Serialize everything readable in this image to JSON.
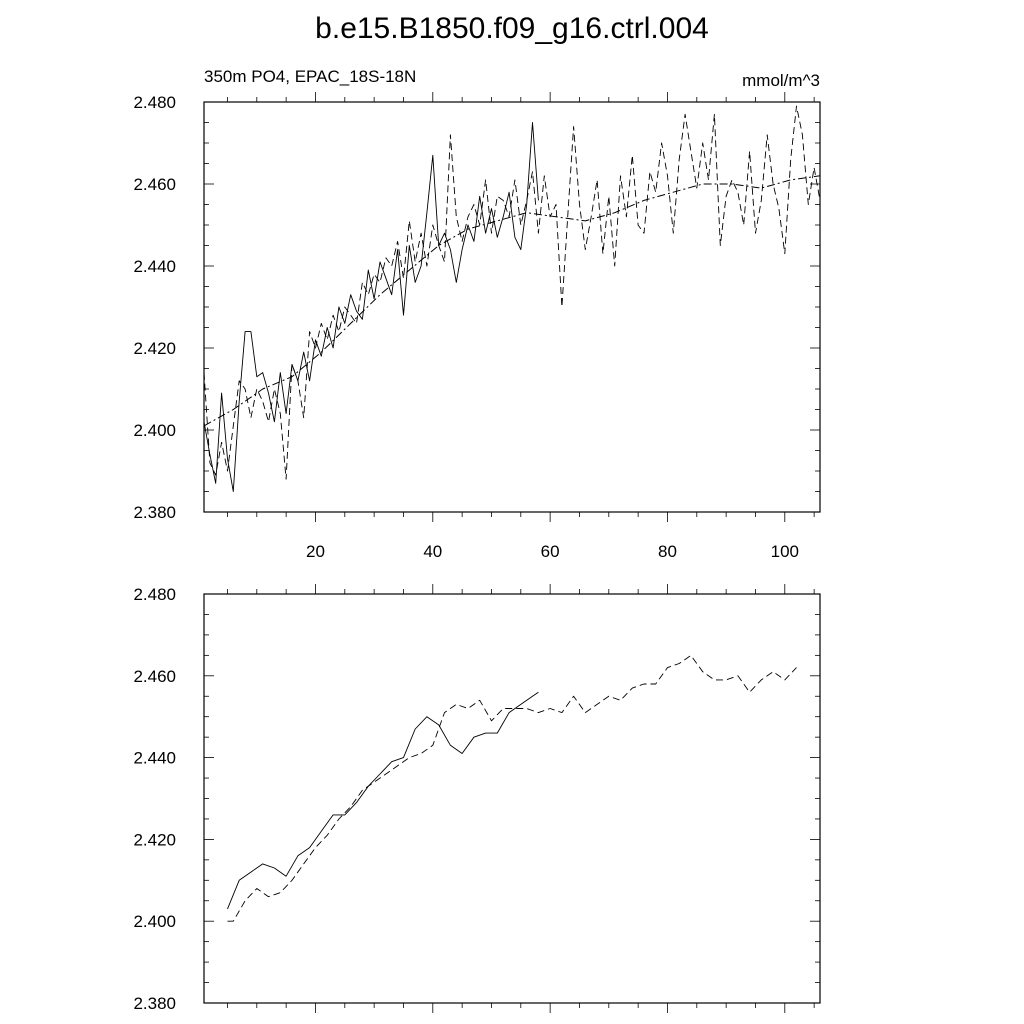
{
  "title": "b.e15.B1850.f09_g16.ctrl.004",
  "colors": {
    "background": "#ffffff",
    "ink": "#000000"
  },
  "chart_data": [
    {
      "type": "line",
      "subtitle_left": "350m PO4, EPAC_18S-18N",
      "subtitle_right": "mmol/m^3",
      "xlim": [
        1,
        106
      ],
      "ylim": [
        2.38,
        2.48
      ],
      "x_ticks": [
        20,
        40,
        60,
        80,
        100
      ],
      "x_tick_labels": [
        "20",
        "40",
        "60",
        "80",
        "100"
      ],
      "y_ticks": [
        2.38,
        2.4,
        2.42,
        2.44,
        2.46,
        2.48
      ],
      "y_tick_labels": [
        "2.380",
        "2.400",
        "2.420",
        "2.440",
        "2.460",
        "2.480"
      ],
      "grid": false,
      "series": [
        {
          "style": "solid",
          "x": [
            1,
            2,
            3,
            4,
            5,
            6,
            7,
            8,
            9,
            10,
            11,
            12,
            13,
            14,
            15,
            16,
            17,
            18,
            19,
            20,
            21,
            22,
            23,
            24,
            25,
            26,
            27,
            28,
            29,
            30,
            31,
            32,
            33,
            34,
            35,
            36,
            37,
            38,
            39,
            40,
            41,
            42,
            43,
            44,
            45,
            46,
            47,
            48,
            49,
            50,
            51,
            52,
            53,
            54,
            55,
            56,
            57,
            58
          ],
          "y": [
            2.402,
            2.394,
            2.387,
            2.409,
            2.393,
            2.385,
            2.407,
            2.424,
            2.424,
            2.413,
            2.414,
            2.409,
            2.402,
            2.414,
            2.404,
            2.416,
            2.412,
            2.419,
            2.412,
            2.422,
            2.418,
            2.425,
            2.42,
            2.43,
            2.426,
            2.433,
            2.429,
            2.427,
            2.439,
            2.432,
            2.441,
            2.437,
            2.433,
            2.444,
            2.428,
            2.445,
            2.436,
            2.44,
            2.453,
            2.467,
            2.445,
            2.448,
            2.444,
            2.436,
            2.444,
            2.45,
            2.446,
            2.457,
            2.448,
            2.454,
            2.447,
            2.452,
            2.458,
            2.447,
            2.444,
            2.455,
            2.475,
            2.456
          ]
        },
        {
          "style": "dashed",
          "x": [
            1,
            2,
            3,
            4,
            5,
            6,
            7,
            8,
            9,
            10,
            11,
            12,
            13,
            14,
            15,
            16,
            17,
            18,
            19,
            20,
            21,
            22,
            23,
            24,
            25,
            26,
            27,
            28,
            29,
            30,
            31,
            32,
            33,
            34,
            35,
            36,
            37,
            38,
            39,
            40,
            41,
            42,
            43,
            44,
            45,
            46,
            47,
            48,
            49,
            50,
            51,
            52,
            53,
            54,
            55,
            56,
            57,
            58,
            59,
            60,
            61,
            62,
            63,
            64,
            65,
            66,
            67,
            68,
            69,
            70,
            71,
            72,
            73,
            74,
            75,
            76,
            77,
            78,
            79,
            80,
            81,
            82,
            83,
            84,
            85,
            86,
            87,
            88,
            89,
            90,
            91,
            92,
            93,
            94,
            95,
            96,
            97,
            98,
            99,
            100,
            101,
            102,
            103,
            104,
            105,
            106
          ],
          "y": [
            2.414,
            2.392,
            2.389,
            2.397,
            2.39,
            2.401,
            2.412,
            2.41,
            2.403,
            2.41,
            2.407,
            2.402,
            2.41,
            2.404,
            2.388,
            2.416,
            2.412,
            2.403,
            2.424,
            2.42,
            2.426,
            2.422,
            2.428,
            2.424,
            2.43,
            2.428,
            2.426,
            2.436,
            2.433,
            2.438,
            2.436,
            2.442,
            2.44,
            2.446,
            2.437,
            2.451,
            2.441,
            2.448,
            2.44,
            2.45,
            2.445,
            2.441,
            2.472,
            2.452,
            2.446,
            2.452,
            2.455,
            2.45,
            2.461,
            2.448,
            2.457,
            2.456,
            2.452,
            2.461,
            2.45,
            2.456,
            2.463,
            2.448,
            2.462,
            2.452,
            2.455,
            2.43,
            2.452,
            2.474,
            2.455,
            2.444,
            2.452,
            2.461,
            2.443,
            2.457,
            2.44,
            2.462,
            2.452,
            2.467,
            2.45,
            2.448,
            2.463,
            2.458,
            2.47,
            2.462,
            2.448,
            2.466,
            2.477,
            2.468,
            2.459,
            2.47,
            2.461,
            2.477,
            2.445,
            2.457,
            2.461,
            2.458,
            2.45,
            2.468,
            2.448,
            2.456,
            2.472,
            2.46,
            2.454,
            2.443,
            2.466,
            2.479,
            2.472,
            2.455,
            2.464,
            2.456
          ]
        },
        {
          "style": "dash-dot",
          "x": [
            1,
            6,
            11,
            16,
            21,
            26,
            31,
            36,
            41,
            46,
            51,
            56,
            61,
            66,
            71,
            76,
            81,
            86,
            91,
            96,
            101,
            106
          ],
          "y": [
            2.401,
            2.405,
            2.41,
            2.413,
            2.419,
            2.426,
            2.433,
            2.439,
            2.445,
            2.449,
            2.451,
            2.453,
            2.452,
            2.451,
            2.453,
            2.456,
            2.458,
            2.46,
            2.46,
            2.459,
            2.461,
            2.462
          ]
        }
      ]
    },
    {
      "type": "line",
      "xlim": [
        1,
        106
      ],
      "ylim": [
        2.38,
        2.48
      ],
      "x_ticks": [
        20,
        40,
        60,
        80,
        100
      ],
      "y_ticks": [
        2.38,
        2.4,
        2.42,
        2.44,
        2.46,
        2.48
      ],
      "y_tick_labels": [
        "2.380",
        "2.400",
        "2.420",
        "2.440",
        "2.460",
        "2.480"
      ],
      "grid": false,
      "series": [
        {
          "style": "solid",
          "x": [
            5,
            7,
            9,
            11,
            13,
            15,
            17,
            19,
            21,
            23,
            25,
            27,
            29,
            31,
            33,
            35,
            37,
            39,
            41,
            43,
            45,
            47,
            49,
            51,
            53,
            55,
            57,
            58
          ],
          "y": [
            2.403,
            2.41,
            2.412,
            2.414,
            2.413,
            2.411,
            2.416,
            2.418,
            2.422,
            2.426,
            2.426,
            2.429,
            2.433,
            2.436,
            2.439,
            2.44,
            2.447,
            2.45,
            2.448,
            2.443,
            2.441,
            2.445,
            2.446,
            2.446,
            2.451,
            2.453,
            2.455,
            2.456
          ]
        },
        {
          "style": "dashed",
          "x": [
            5,
            6,
            8,
            10,
            12,
            14,
            16,
            18,
            20,
            22,
            24,
            26,
            28,
            30,
            32,
            34,
            36,
            38,
            40,
            42,
            44,
            46,
            48,
            50,
            52,
            54,
            56,
            58,
            60,
            62,
            64,
            66,
            68,
            70,
            72,
            74,
            76,
            78,
            80,
            82,
            84,
            86,
            88,
            90,
            92,
            94,
            96,
            98,
            100,
            102
          ],
          "y": [
            2.4,
            2.4,
            2.405,
            2.408,
            2.406,
            2.407,
            2.41,
            2.414,
            2.418,
            2.421,
            2.425,
            2.428,
            2.432,
            2.434,
            2.436,
            2.438,
            2.44,
            2.441,
            2.443,
            2.451,
            2.453,
            2.452,
            2.454,
            2.449,
            2.452,
            2.452,
            2.452,
            2.451,
            2.452,
            2.451,
            2.455,
            2.451,
            2.453,
            2.455,
            2.454,
            2.457,
            2.458,
            2.458,
            2.462,
            2.463,
            2.465,
            2.461,
            2.459,
            2.459,
            2.46,
            2.456,
            2.459,
            2.461,
            2.459,
            2.462
          ]
        }
      ]
    }
  ]
}
